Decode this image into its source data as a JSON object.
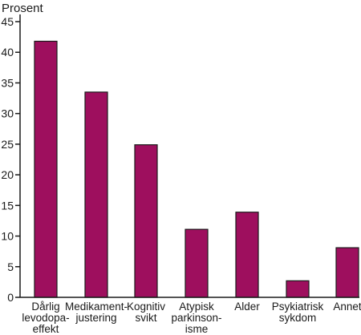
{
  "chart_data": {
    "type": "bar",
    "title": "",
    "ylabel": "Prosent",
    "xlabel": "",
    "ylim": [
      0,
      45
    ],
    "yticks": [
      0,
      5,
      10,
      15,
      20,
      25,
      30,
      35,
      40,
      45
    ],
    "grid": false,
    "bar_color": "#9e0f5e",
    "categories": [
      [
        "Dårlig",
        "levodopa-",
        "effekt"
      ],
      [
        "Medikament-",
        "justering"
      ],
      [
        "Kognitiv",
        "svikt"
      ],
      [
        "Atypisk",
        "parkinson-",
        "isme"
      ],
      [
        "Alder"
      ],
      [
        "Psykiatrisk",
        "sykdom"
      ],
      [
        "Annet"
      ]
    ],
    "values": [
      41.8,
      33.5,
      24.9,
      11.1,
      13.9,
      2.7,
      8.1
    ]
  }
}
